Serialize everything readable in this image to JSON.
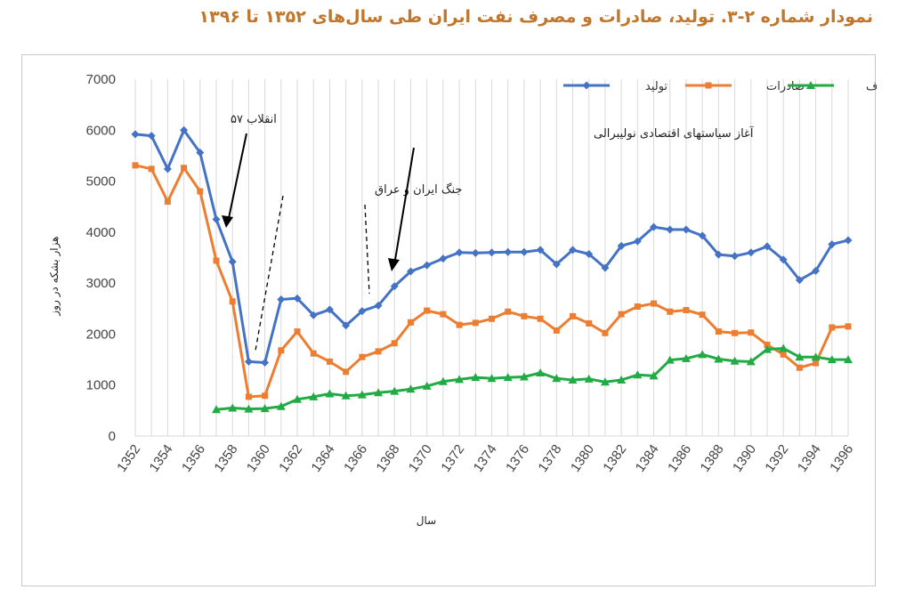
{
  "page": {
    "title": "نمودار شماره ۲-۳. تولید، صادرات و مصرف نفت ایران طی سال‌های ۱۳۵۲ تا ۱۳۹۶"
  },
  "chart_data": {
    "type": "line",
    "title": "",
    "xlabel": "سال",
    "ylabel": "هزار بشکه در روز",
    "ylim": [
      0,
      7000
    ],
    "yticks": [
      "0",
      "1000",
      "2000",
      "3000",
      "4000",
      "5000",
      "6000",
      "7000"
    ],
    "xlim": [
      1352,
      1396
    ],
    "xticks": [
      "1352",
      "1354",
      "1356",
      "1358",
      "1360",
      "1362",
      "1364",
      "1366",
      "1368",
      "1370",
      "1372",
      "1374",
      "1376",
      "1378",
      "1380",
      "1382",
      "1384",
      "1386",
      "1388",
      "1390",
      "1392",
      "1394",
      "1396"
    ],
    "grid": "vertical",
    "legend_position": "top-right",
    "x": [
      1352,
      1353,
      1354,
      1355,
      1356,
      1357,
      1358,
      1359,
      1360,
      1361,
      1362,
      1363,
      1364,
      1365,
      1366,
      1367,
      1368,
      1369,
      1370,
      1371,
      1372,
      1373,
      1374,
      1375,
      1376,
      1377,
      1378,
      1379,
      1380,
      1381,
      1382,
      1383,
      1384,
      1385,
      1386,
      1387,
      1388,
      1389,
      1390,
      1391,
      1392,
      1393,
      1394,
      1395,
      1396
    ],
    "series": [
      {
        "name": "تولید",
        "color": "#4472c4",
        "marker": "diamond",
        "values": [
          5920,
          5890,
          5240,
          6000,
          5560,
          4250,
          3420,
          1460,
          1440,
          2680,
          2700,
          2370,
          2480,
          2170,
          2450,
          2560,
          2940,
          3230,
          3350,
          3480,
          3600,
          3590,
          3600,
          3610,
          3610,
          3650,
          3370,
          3650,
          3570,
          3300,
          3730,
          3820,
          4100,
          4050,
          4050,
          3930,
          3560,
          3530,
          3600,
          3720,
          3460,
          3060,
          3240,
          3760,
          3840
        ]
      },
      {
        "name": "صادرات",
        "color": "#ed7d31",
        "marker": "square",
        "values": [
          5310,
          5240,
          4600,
          5260,
          4800,
          3440,
          2640,
          770,
          790,
          1680,
          2050,
          1620,
          1460,
          1260,
          1550,
          1660,
          1820,
          2230,
          2460,
          2390,
          2180,
          2220,
          2300,
          2440,
          2350,
          2300,
          2070,
          2350,
          2210,
          2020,
          2390,
          2540,
          2600,
          2440,
          2470,
          2380,
          2050,
          2020,
          2030,
          1790,
          1600,
          1340,
          1430,
          2130,
          2150
        ]
      },
      {
        "name": "مصرف",
        "color": "#22aa44",
        "marker": "triangle",
        "values": [
          null,
          null,
          null,
          null,
          null,
          520,
          550,
          530,
          540,
          580,
          720,
          770,
          830,
          790,
          810,
          850,
          880,
          920,
          980,
          1070,
          1110,
          1150,
          1130,
          1150,
          1160,
          1240,
          1130,
          1100,
          1120,
          1060,
          1100,
          1200,
          1180,
          1490,
          1520,
          1600,
          1510,
          1470,
          1460,
          1700,
          1720,
          1550,
          1550,
          1500,
          1500
        ]
      }
    ],
    "annotations": [
      {
        "text": "انقلاب ۵۷"
      },
      {
        "text": "جنگ ایران و عراق"
      },
      {
        "text": "آغاز سیاستهای اقتصادی نولیبرالی"
      }
    ]
  }
}
